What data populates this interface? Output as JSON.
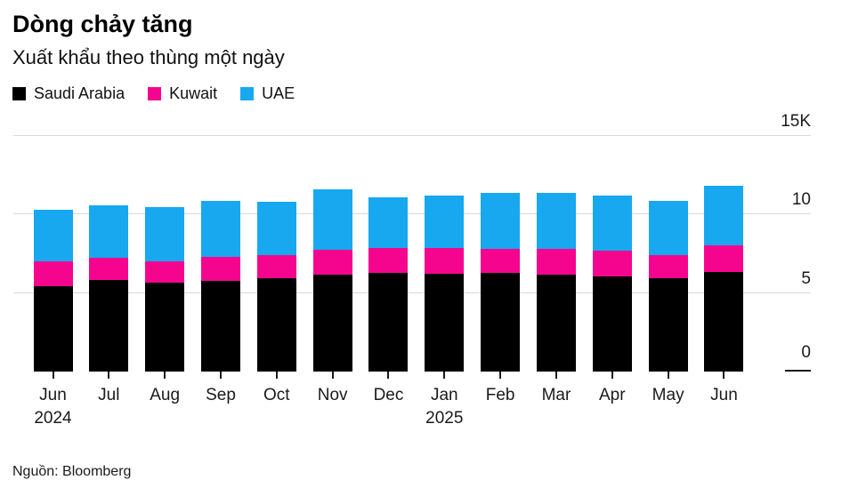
{
  "header": {
    "title": "Dòng chảy tăng",
    "subtitle": "Xuất khẩu theo thùng một ngày"
  },
  "footer": {
    "source": "Nguồn: Bloomberg"
  },
  "colors": {
    "saudi_arabia": "#000000",
    "kuwait": "#f5058e",
    "uae": "#17a8f0",
    "gridline": "#d9d9d9",
    "zero_line": "#1a1a1a",
    "text": "#111111"
  },
  "chart_data": {
    "type": "bar",
    "stacked": true,
    "title": "Dòng chảy tăng",
    "subtitle": "Xuất khẩu theo thùng một ngày",
    "unit": "thousand barrels per day",
    "categories": [
      "Jun",
      "Jul",
      "Aug",
      "Sep",
      "Oct",
      "Nov",
      "Dec",
      "Jan",
      "Feb",
      "Mar",
      "Apr",
      "May",
      "Jun"
    ],
    "category_year_lines": [
      {
        "index": 0,
        "year": "2024"
      },
      {
        "index": 7,
        "year": "2025"
      }
    ],
    "series": [
      {
        "name": "Saudi Arabia",
        "color": "#000000",
        "values": [
          5.45,
          5.85,
          5.65,
          5.75,
          5.95,
          6.2,
          6.3,
          6.25,
          6.3,
          6.2,
          6.05,
          5.95,
          6.35
        ]
      },
      {
        "name": "Kuwait",
        "color": "#f5058e",
        "values": [
          1.55,
          1.4,
          1.4,
          1.55,
          1.45,
          1.55,
          1.55,
          1.6,
          1.5,
          1.6,
          1.65,
          1.45,
          1.7
        ]
      },
      {
        "name": "UAE",
        "color": "#17a8f0",
        "values": [
          3.3,
          3.35,
          3.45,
          3.55,
          3.4,
          3.85,
          3.25,
          3.35,
          3.6,
          3.6,
          3.5,
          3.5,
          3.8
        ]
      }
    ],
    "ylim": [
      0,
      15
    ],
    "yticks": [
      {
        "label": "0",
        "value": 0
      },
      {
        "label": "5",
        "value": 5
      },
      {
        "label": "10",
        "value": 10
      },
      {
        "label": "15K",
        "value": 15
      }
    ],
    "grid": "horizontal",
    "legend_position": "top-left",
    "y_axis_side": "right"
  }
}
